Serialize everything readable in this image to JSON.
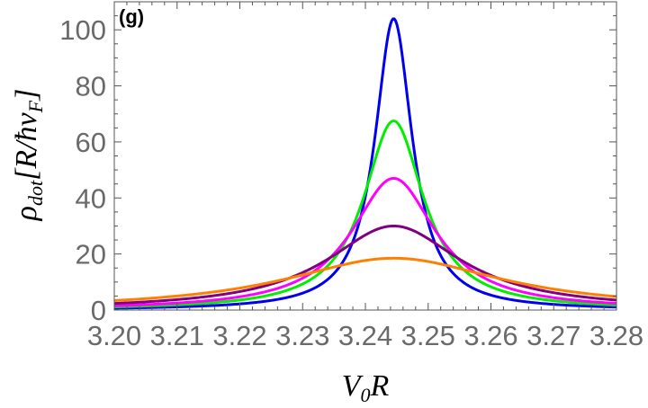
{
  "panel_label": "(g)",
  "chart_data": {
    "type": "line",
    "xlabel_main": "V",
    "xlabel_sub": "0",
    "xlabel_tail": "R",
    "ylabel_main": "ρ",
    "ylabel_sub": "dot",
    "ylabel_bracket": "[R/ħv",
    "ylabel_sub2": "F",
    "ylabel_end": "]",
    "xlim": [
      3.2,
      3.28
    ],
    "ylim": [
      0,
      110
    ],
    "x_ticks": [
      "3.20",
      "3.21",
      "3.22",
      "3.23",
      "3.24",
      "3.25",
      "3.26",
      "3.27",
      "3.28"
    ],
    "x_tick_values": [
      3.2,
      3.21,
      3.22,
      3.23,
      3.24,
      3.25,
      3.26,
      3.27,
      3.28
    ],
    "y_ticks": [
      "0",
      "20",
      "40",
      "60",
      "80",
      "100"
    ],
    "y_tick_values": [
      0,
      20,
      40,
      60,
      80,
      100
    ],
    "grid": false,
    "series": [
      {
        "color": "#0000ee",
        "peak_x": 3.2445,
        "peak_y": 104,
        "half_width": 0.0036
      },
      {
        "color": "#00ee00",
        "peak_x": 3.2445,
        "peak_y": 67.5,
        "half_width": 0.0058
      },
      {
        "color": "#ff00ff",
        "peak_x": 3.2445,
        "peak_y": 47,
        "half_width": 0.0082
      },
      {
        "color": "#800080",
        "peak_x": 3.2445,
        "peak_y": 30,
        "half_width": 0.013
      },
      {
        "color": "#ff8000",
        "peak_x": 3.2445,
        "peak_y": 18.5,
        "half_width": 0.021
      }
    ]
  }
}
